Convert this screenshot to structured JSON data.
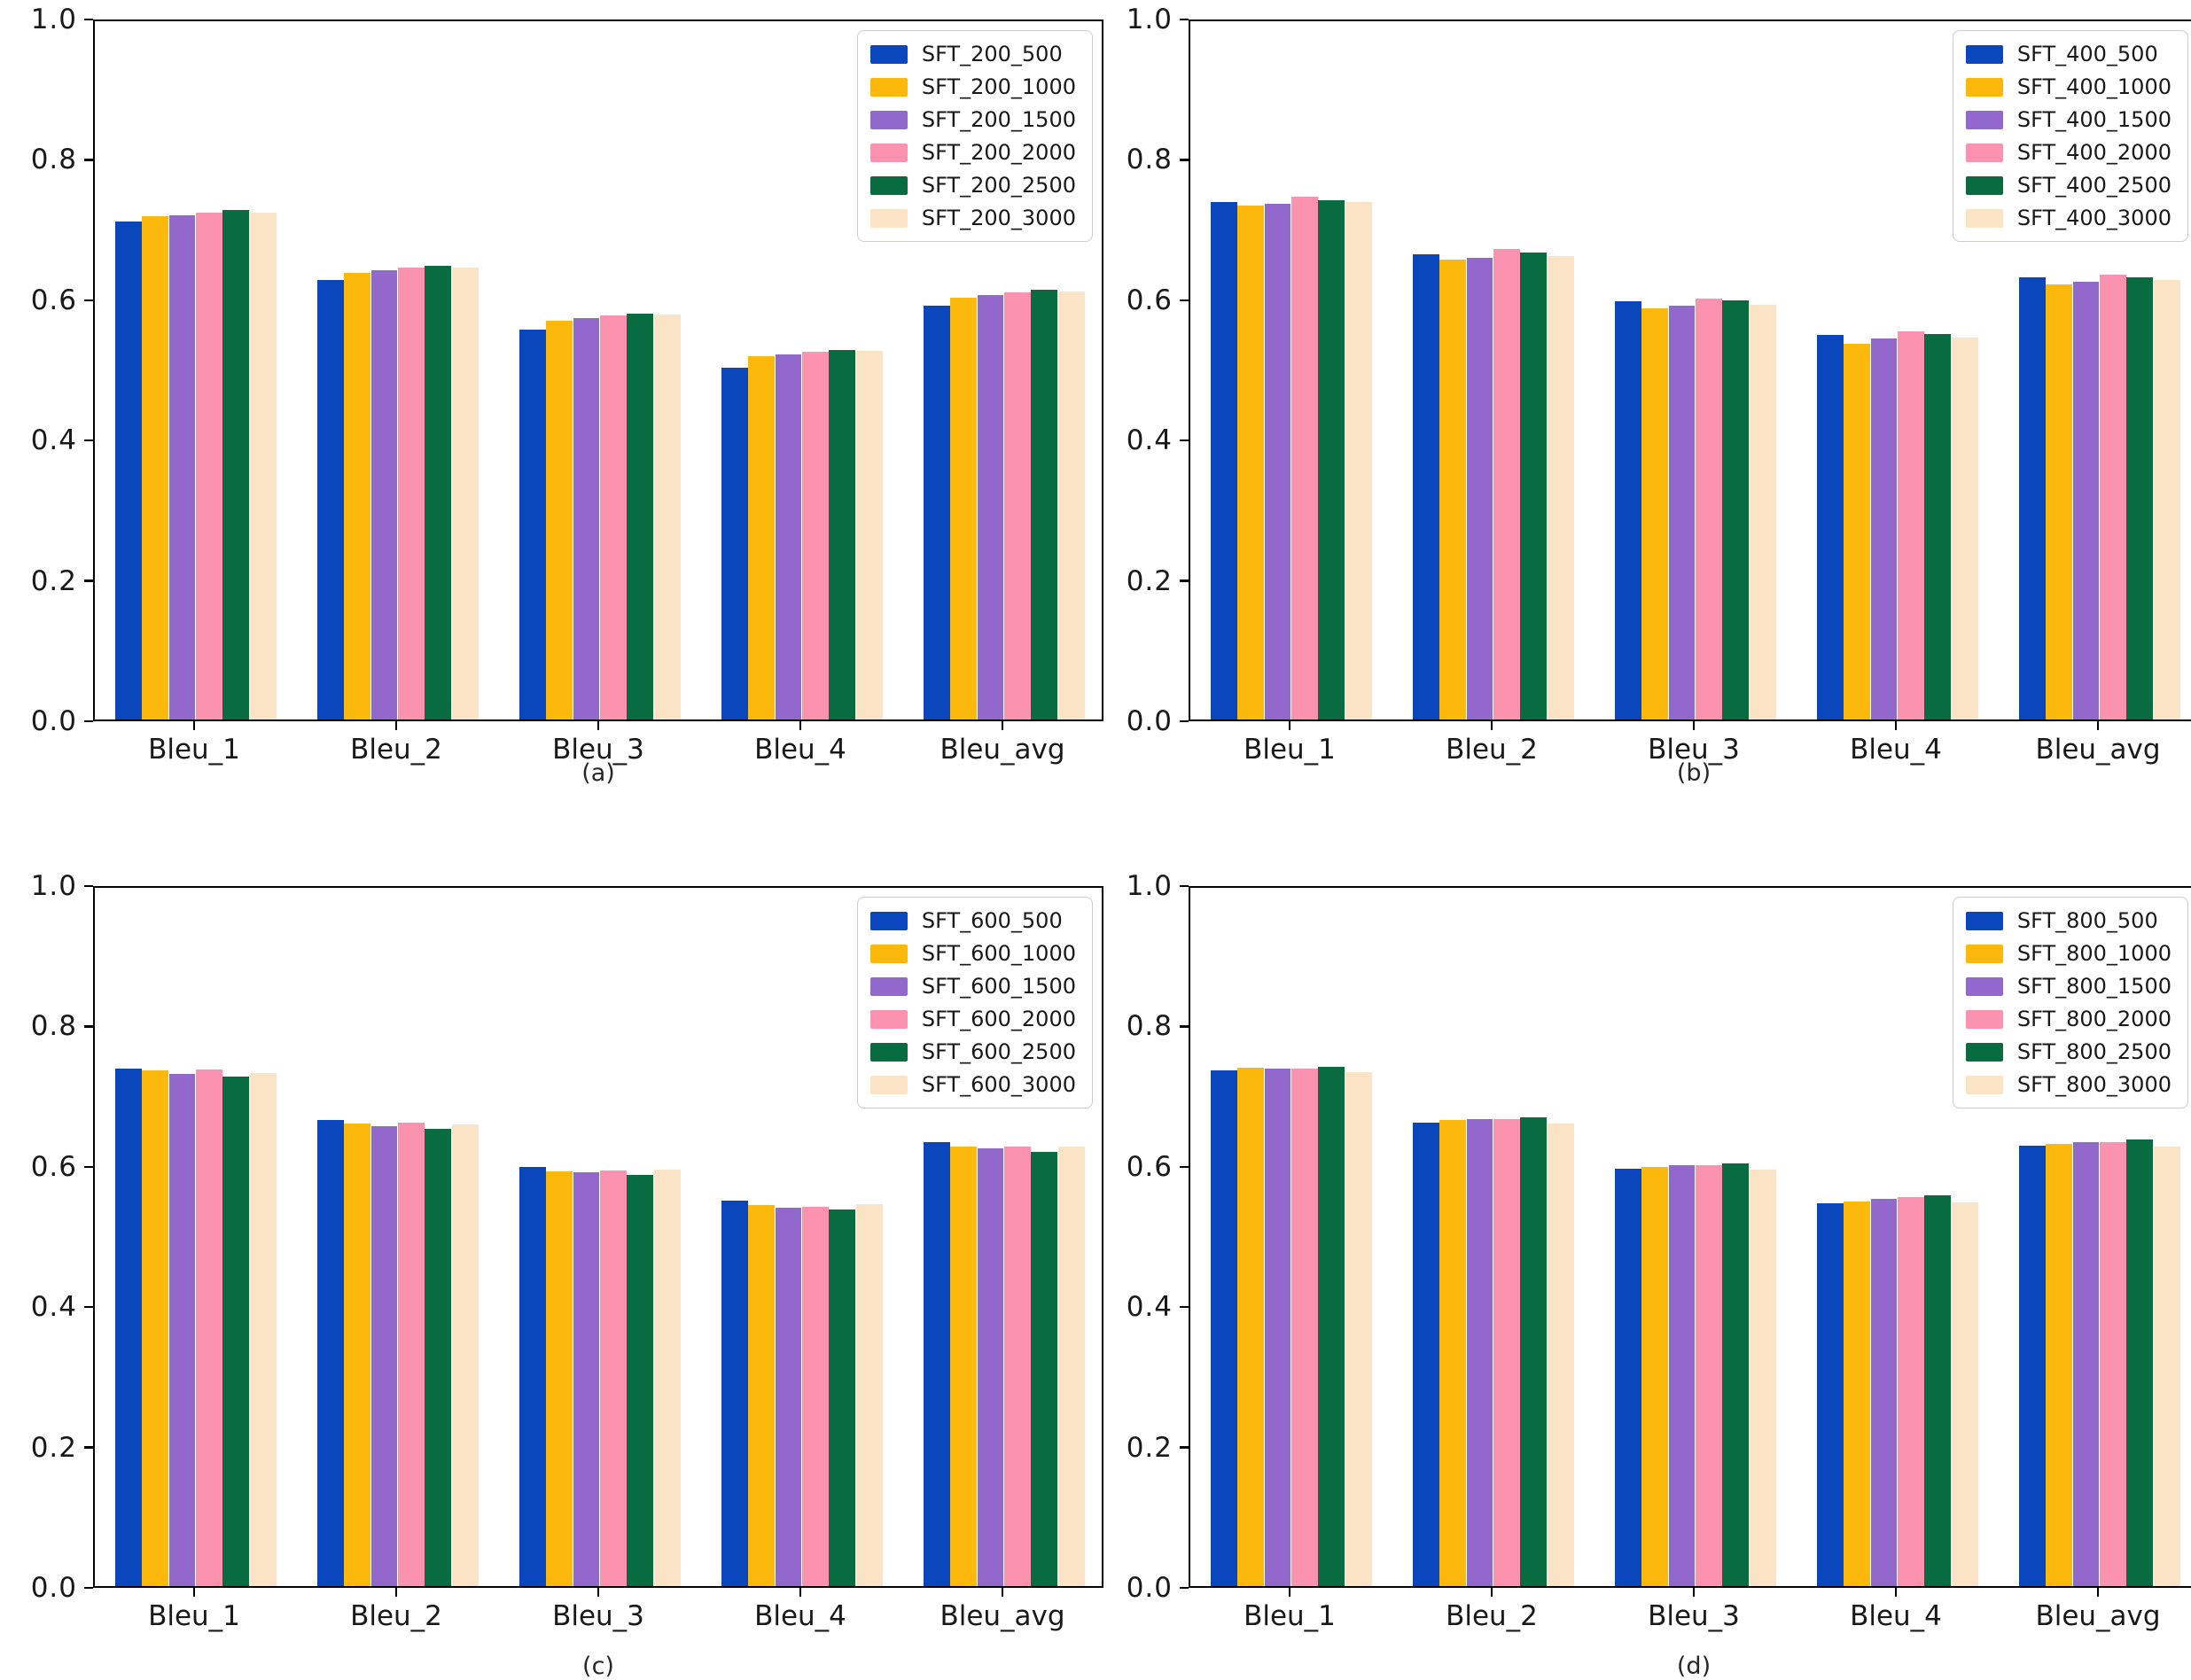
{
  "page": {
    "background": "#ffffff"
  },
  "palette": [
    "#0a46bc",
    "#fcb90b",
    "#9368cc",
    "#fb92b0",
    "#096b40",
    "#fbe3c5"
  ],
  "axis": {
    "ytick_labels": [
      "0.0",
      "0.2",
      "0.4",
      "0.6",
      "0.8",
      "1.0"
    ],
    "ylim": [
      0.0,
      1.0
    ],
    "grid": false,
    "legend_position": "upper right"
  },
  "chart_data": [
    {
      "id": "a",
      "type": "bar",
      "caption": "(a)",
      "categories": [
        "Bleu_1",
        "Bleu_2",
        "Bleu_3",
        "Bleu_4",
        "Bleu_avg"
      ],
      "ylim": [
        0.0,
        1.0
      ],
      "series": [
        {
          "name": "SFT_200_500",
          "values": [
            0.714,
            0.63,
            0.559,
            0.504,
            0.593
          ]
        },
        {
          "name": "SFT_200_1000",
          "values": [
            0.722,
            0.64,
            0.572,
            0.521,
            0.605
          ]
        },
        {
          "name": "SFT_200_1500",
          "values": [
            0.723,
            0.644,
            0.576,
            0.524,
            0.609
          ]
        },
        {
          "name": "SFT_200_2000",
          "values": [
            0.727,
            0.648,
            0.579,
            0.527,
            0.612
          ]
        },
        {
          "name": "SFT_200_2500",
          "values": [
            0.73,
            0.651,
            0.582,
            0.53,
            0.616
          ]
        },
        {
          "name": "SFT_200_3000",
          "values": [
            0.727,
            0.648,
            0.58,
            0.529,
            0.614
          ]
        }
      ]
    },
    {
      "id": "b",
      "type": "bar",
      "caption": "(b)",
      "categories": [
        "Bleu_1",
        "Bleu_2",
        "Bleu_3",
        "Bleu_4",
        "Bleu_avg"
      ],
      "ylim": [
        0.0,
        1.0
      ],
      "series": [
        {
          "name": "SFT_400_500",
          "values": [
            0.742,
            0.667,
            0.6,
            0.551,
            0.634
          ]
        },
        {
          "name": "SFT_400_1000",
          "values": [
            0.737,
            0.659,
            0.59,
            0.539,
            0.624
          ]
        },
        {
          "name": "SFT_400_1500",
          "values": [
            0.739,
            0.662,
            0.593,
            0.546,
            0.628
          ]
        },
        {
          "name": "SFT_400_2000",
          "values": [
            0.749,
            0.674,
            0.604,
            0.556,
            0.638
          ]
        },
        {
          "name": "SFT_400_2500",
          "values": [
            0.744,
            0.669,
            0.601,
            0.553,
            0.634
          ]
        },
        {
          "name": "SFT_400_3000",
          "values": [
            0.742,
            0.665,
            0.595,
            0.548,
            0.63
          ]
        }
      ]
    },
    {
      "id": "c",
      "type": "bar",
      "caption": "(c)",
      "categories": [
        "Bleu_1",
        "Bleu_2",
        "Bleu_3",
        "Bleu_4",
        "Bleu_avg"
      ],
      "ylim": [
        0.0,
        1.0
      ],
      "series": [
        {
          "name": "SFT_600_500",
          "values": [
            0.742,
            0.668,
            0.601,
            0.553,
            0.636
          ]
        },
        {
          "name": "SFT_600_1000",
          "values": [
            0.739,
            0.663,
            0.595,
            0.546,
            0.63
          ]
        },
        {
          "name": "SFT_600_1500",
          "values": [
            0.734,
            0.659,
            0.593,
            0.543,
            0.627
          ]
        },
        {
          "name": "SFT_600_2000",
          "values": [
            0.74,
            0.664,
            0.596,
            0.544,
            0.63
          ]
        },
        {
          "name": "SFT_600_2500",
          "values": [
            0.73,
            0.656,
            0.59,
            0.54,
            0.623
          ]
        },
        {
          "name": "SFT_600_3000",
          "values": [
            0.736,
            0.662,
            0.597,
            0.547,
            0.63
          ]
        }
      ]
    },
    {
      "id": "d",
      "type": "bar",
      "caption": "(d)",
      "categories": [
        "Bleu_1",
        "Bleu_2",
        "Bleu_3",
        "Bleu_4",
        "Bleu_avg"
      ],
      "ylim": [
        0.0,
        1.0
      ],
      "series": [
        {
          "name": "SFT_800_500",
          "values": [
            0.739,
            0.665,
            0.598,
            0.549,
            0.631
          ]
        },
        {
          "name": "SFT_800_1000",
          "values": [
            0.743,
            0.668,
            0.601,
            0.551,
            0.634
          ]
        },
        {
          "name": "SFT_800_1500",
          "values": [
            0.742,
            0.669,
            0.603,
            0.555,
            0.636
          ]
        },
        {
          "name": "SFT_800_2000",
          "values": [
            0.742,
            0.669,
            0.604,
            0.558,
            0.637
          ]
        },
        {
          "name": "SFT_800_2500",
          "values": [
            0.745,
            0.672,
            0.606,
            0.56,
            0.64
          ]
        },
        {
          "name": "SFT_800_3000",
          "values": [
            0.737,
            0.663,
            0.597,
            0.55,
            0.63
          ]
        }
      ]
    }
  ]
}
